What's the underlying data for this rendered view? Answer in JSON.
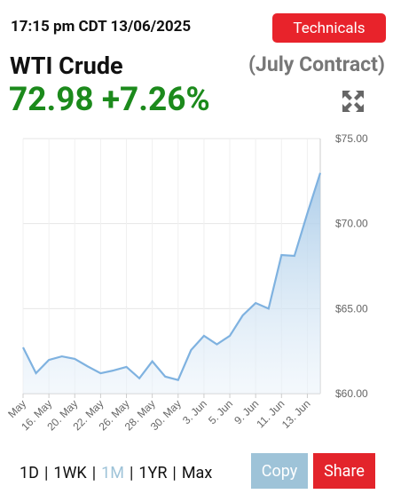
{
  "header": {
    "timestamp": "17:15 pm CDT 13/06/2025",
    "technicals_button": "Technicals",
    "name": "WTI Crude",
    "contract": "(July Contract)",
    "price": "72.98",
    "change": "+7.26%"
  },
  "chart_data": {
    "type": "area",
    "color": "#7fb2e0",
    "categories": [
      "May",
      null,
      "16. May",
      null,
      "20. May",
      null,
      "22. May",
      null,
      "26. May",
      null,
      "28. May",
      null,
      "30. May",
      null,
      "3. Jun",
      null,
      "5. Jun",
      null,
      "9. Jun",
      null,
      "11. Jun",
      null,
      "13. Jun",
      null
    ],
    "values": [
      62.72,
      61.2,
      61.98,
      62.19,
      62.04,
      61.6,
      61.2,
      61.36,
      61.57,
      60.9,
      61.9,
      61.0,
      60.8,
      62.56,
      63.4,
      62.9,
      63.4,
      64.6,
      65.33,
      65.0,
      68.15,
      68.1,
      70.6,
      72.98
    ],
    "ylim": [
      60,
      75
    ],
    "yticks": [
      {
        "value": 60,
        "label": "$60.00"
      },
      {
        "value": 65,
        "label": "$65.00"
      },
      {
        "value": 70,
        "label": "$70.00"
      },
      {
        "value": 75,
        "label": "$75.00"
      }
    ],
    "grid": true
  },
  "controls": {
    "ranges": [
      "1D",
      "1WK",
      "1M",
      "1YR",
      "Max"
    ],
    "copy": "Copy",
    "share": "Share"
  }
}
